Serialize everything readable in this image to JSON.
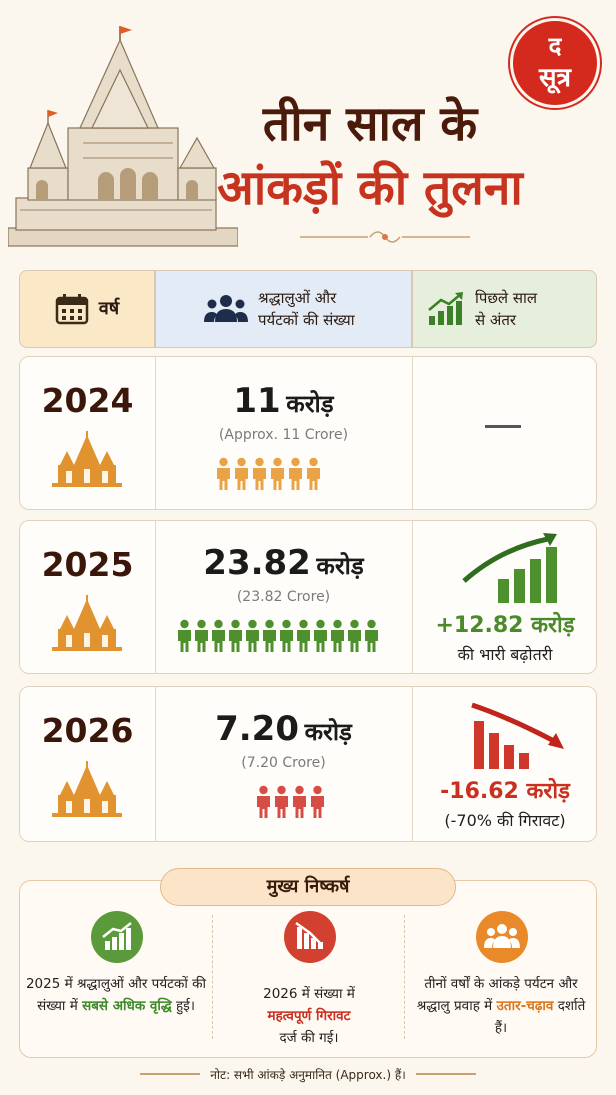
{
  "logo": {
    "line1": "द",
    "line2": "सूत्र"
  },
  "headline": {
    "line1": "तीन साल के",
    "line2": "आंकड़ों की तुलना"
  },
  "table_header": {
    "year": "वर्ष",
    "count_line1": "श्रद्धालुओं और",
    "count_line2": "पर्यटकों की संख्या",
    "diff_line1": "पिछले साल",
    "diff_line2": "से अंतर"
  },
  "rows": [
    {
      "year": "2024",
      "value": "11",
      "unit": "करोड़",
      "approx": "(Approx. 11 Crore)",
      "people": 6,
      "change": "—",
      "change_sub": ""
    },
    {
      "year": "2025",
      "value": "23.82",
      "unit": "करोड़",
      "approx": "(23.82 Crore)",
      "people": 12,
      "change": "+12.82 करोड़",
      "change_sub": "की भारी बढ़ोतरी"
    },
    {
      "year": "2026",
      "value": "7.20",
      "unit": "करोड़",
      "approx": "(7.20 Crore)",
      "people": 4,
      "change": "-16.62 करोड़",
      "change_sub": "(-70% की गिरावट)"
    }
  ],
  "findings": {
    "title": "मुख्य निष्कर्ष",
    "items": [
      {
        "icon": "growth-chart-icon",
        "pre": "2025 में श्रद्धालुओं और पर्यटकों की संख्या में",
        "highlight": "सबसे अधिक वृद्धि",
        "post": "हुई।"
      },
      {
        "icon": "decline-chart-icon",
        "pre": "2026 में संख्या में",
        "highlight": "महत्वपूर्ण गिरावट",
        "post": "दर्ज की गई।"
      },
      {
        "icon": "group-icon",
        "pre": "तीनों वर्षों के आंकड़े पर्यटन और श्रद्धालु प्रवाह में",
        "highlight": "उतार-चढ़ाव",
        "post": "दर्शाते हैं।"
      }
    ]
  },
  "note": "नोट: सभी आंकड़े अनुमानित (Approx.) हैं।",
  "colors": {
    "orange": "#e9a245",
    "green": "#4e8f2e",
    "red": "#d54d45",
    "brand_red": "#d42a1e"
  }
}
